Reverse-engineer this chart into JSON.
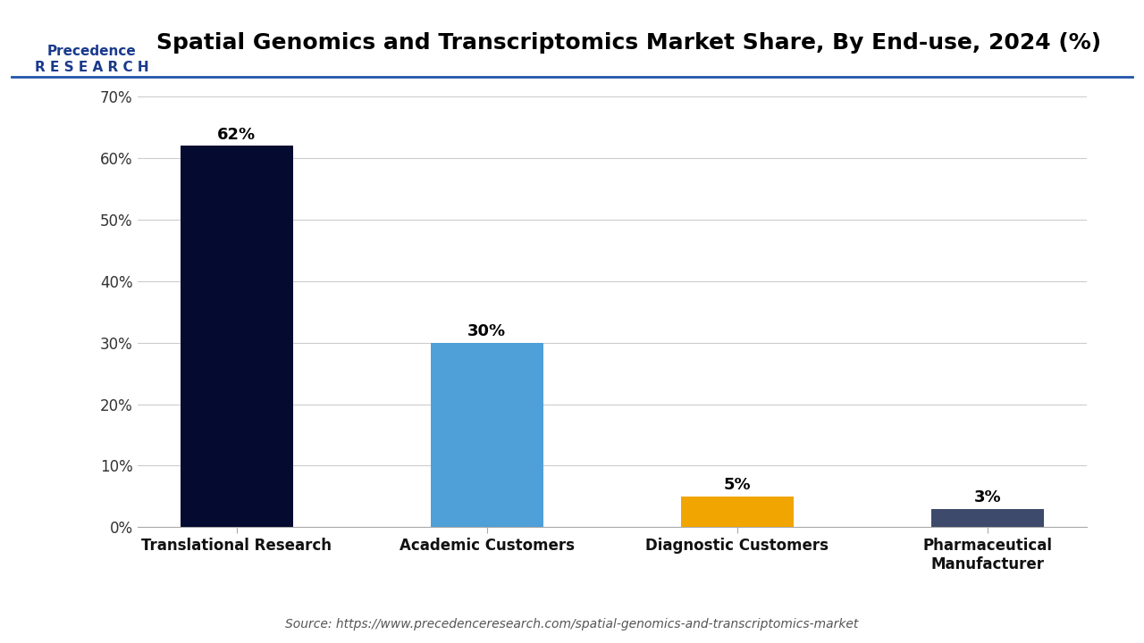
{
  "title": "Spatial Genomics and Transcriptomics Market Share, By End-use, 2024 (%)",
  "categories": [
    "Translational Research",
    "Academic Customers",
    "Diagnostic Customers",
    "Pharmaceutical\nManufacturer"
  ],
  "values": [
    62,
    30,
    5,
    3
  ],
  "bar_colors": [
    "#050A30",
    "#4F9FD8",
    "#F0A500",
    "#3D4A6B"
  ],
  "value_labels": [
    "62%",
    "30%",
    "5%",
    "3%"
  ],
  "ylim": [
    0,
    70
  ],
  "yticks": [
    0,
    10,
    20,
    30,
    40,
    50,
    60,
    70
  ],
  "ytick_labels": [
    "0%",
    "10%",
    "20%",
    "30%",
    "40%",
    "50%",
    "60%",
    "70%"
  ],
  "background_color": "#FFFFFF",
  "source_text": "Source: https://www.precedenceresearch.com/spatial-genomics-and-transcriptomics-market",
  "title_fontsize": 18,
  "label_fontsize": 13,
  "tick_fontsize": 12,
  "source_fontsize": 10,
  "bar_width": 0.45
}
